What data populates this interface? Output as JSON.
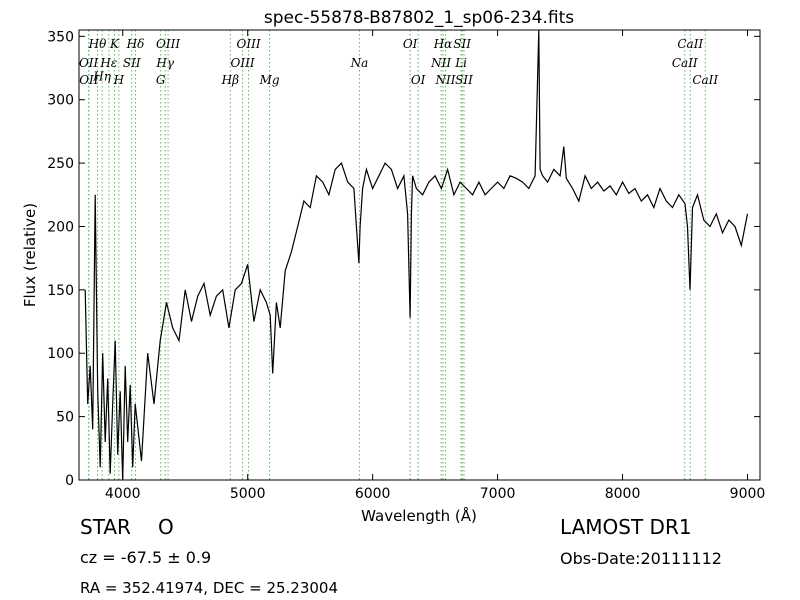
{
  "chart_data": {
    "type": "line",
    "title": "spec-55878-B87802_1_sp06-234.fits",
    "xlabel": "Wavelength (Å)",
    "ylabel": "Flux (relative)",
    "xlim": [
      3650,
      9100
    ],
    "ylim": [
      0,
      355
    ],
    "xticks": [
      4000,
      5000,
      6000,
      7000,
      8000,
      9000
    ],
    "yticks": [
      0,
      50,
      100,
      150,
      200,
      250,
      300,
      350
    ],
    "grid": false,
    "line_color": "#000000",
    "marker_color": "#55bb55",
    "spectrum": {
      "x": [
        3700,
        3720,
        3740,
        3760,
        3780,
        3800,
        3820,
        3840,
        3860,
        3880,
        3900,
        3920,
        3940,
        3960,
        3980,
        4000,
        4020,
        4040,
        4060,
        4080,
        4100,
        4150,
        4200,
        4250,
        4300,
        4350,
        4400,
        4450,
        4500,
        4550,
        4600,
        4650,
        4700,
        4750,
        4800,
        4850,
        4900,
        4950,
        5000,
        5050,
        5100,
        5150,
        5180,
        5200,
        5230,
        5260,
        5300,
        5350,
        5400,
        5450,
        5500,
        5550,
        5600,
        5650,
        5700,
        5750,
        5800,
        5850,
        5870,
        5890,
        5900,
        5920,
        5950,
        6000,
        6050,
        6100,
        6150,
        6200,
        6250,
        6280,
        6300,
        6310,
        6320,
        6350,
        6400,
        6450,
        6500,
        6550,
        6600,
        6650,
        6700,
        6750,
        6800,
        6850,
        6900,
        6950,
        7000,
        7050,
        7100,
        7150,
        7200,
        7250,
        7300,
        7330,
        7340,
        7360,
        7400,
        7450,
        7500,
        7530,
        7550,
        7600,
        7650,
        7700,
        7750,
        7800,
        7850,
        7900,
        7950,
        8000,
        8050,
        8100,
        8150,
        8200,
        8250,
        8300,
        8350,
        8400,
        8450,
        8500,
        8520,
        8540,
        8560,
        8600,
        8650,
        8700,
        8750,
        8800,
        8850,
        8900,
        8950,
        9000
      ],
      "y": [
        150,
        60,
        90,
        40,
        225,
        70,
        10,
        100,
        30,
        80,
        5,
        60,
        110,
        20,
        70,
        0,
        90,
        30,
        75,
        10,
        60,
        15,
        100,
        60,
        110,
        140,
        120,
        110,
        150,
        125,
        145,
        155,
        130,
        145,
        150,
        120,
        150,
        155,
        170,
        125,
        150,
        140,
        130,
        84,
        140,
        120,
        165,
        180,
        200,
        220,
        215,
        240,
        235,
        225,
        245,
        250,
        235,
        230,
        200,
        171,
        200,
        230,
        245,
        230,
        240,
        250,
        245,
        230,
        240,
        210,
        128,
        210,
        240,
        230,
        225,
        235,
        240,
        230,
        245,
        225,
        235,
        230,
        225,
        235,
        225,
        230,
        235,
        230,
        240,
        238,
        235,
        230,
        240,
        355,
        245,
        240,
        235,
        245,
        240,
        263,
        238,
        230,
        220,
        240,
        230,
        235,
        228,
        232,
        225,
        235,
        226,
        230,
        220,
        225,
        215,
        230,
        220,
        215,
        225,
        218,
        200,
        150,
        215,
        225,
        205,
        200,
        210,
        195,
        205,
        200,
        185,
        210
      ]
    },
    "lines": [
      {
        "wl": 3727,
        "label": "OII",
        "row": 2
      },
      {
        "wl": 3729,
        "label": "OII",
        "row": 3
      },
      {
        "wl": 3798,
        "label": "Hθ",
        "row": 1
      },
      {
        "wl": 3835,
        "label": "Hη",
        "row": 2.7
      },
      {
        "wl": 3889,
        "label": "Hε",
        "row": 2
      },
      {
        "wl": 3934,
        "label": "K",
        "row": 1
      },
      {
        "wl": 3969,
        "label": "H",
        "row": 3
      },
      {
        "wl": 4072,
        "label": "SII",
        "row": 2
      },
      {
        "wl": 4102,
        "label": "Hδ",
        "row": 1
      },
      {
        "wl": 4304,
        "label": "G",
        "row": 3
      },
      {
        "wl": 4340,
        "label": "Hγ",
        "row": 2
      },
      {
        "wl": 4363,
        "label": "OIII",
        "row": 1
      },
      {
        "wl": 4861,
        "label": "Hβ",
        "row": 3
      },
      {
        "wl": 4959,
        "label": "OIII",
        "row": 2
      },
      {
        "wl": 5007,
        "label": "OIII",
        "row": 1
      },
      {
        "wl": 5175,
        "label": "Mg",
        "row": 3
      },
      {
        "wl": 5894,
        "label": "Na",
        "row": 2
      },
      {
        "wl": 6300,
        "label": "OI",
        "row": 1
      },
      {
        "wl": 6364,
        "label": "OI",
        "row": 3
      },
      {
        "wl": 6548,
        "label": "NII",
        "row": 2
      },
      {
        "wl": 6563,
        "label": "Hα",
        "row": 1
      },
      {
        "wl": 6583,
        "label": "NII",
        "row": 3
      },
      {
        "wl": 6708,
        "label": "Li",
        "row": 2
      },
      {
        "wl": 6716,
        "label": "SII",
        "row": 1
      },
      {
        "wl": 6731,
        "label": "SII",
        "row": 3
      },
      {
        "wl": 8498,
        "label": "CaII",
        "row": 2
      },
      {
        "wl": 8542,
        "label": "CaII",
        "row": 1
      },
      {
        "wl": 8662,
        "label": "CaII",
        "row": 3
      }
    ]
  },
  "info": {
    "class": "STAR",
    "subclass": "O",
    "survey": "LAMOST DR1",
    "cz": "cz = -67.5 ± 0.9",
    "obs_date": "Obs-Date:20111112",
    "coords": "RA = 352.41974, DEC = 25.23004"
  }
}
